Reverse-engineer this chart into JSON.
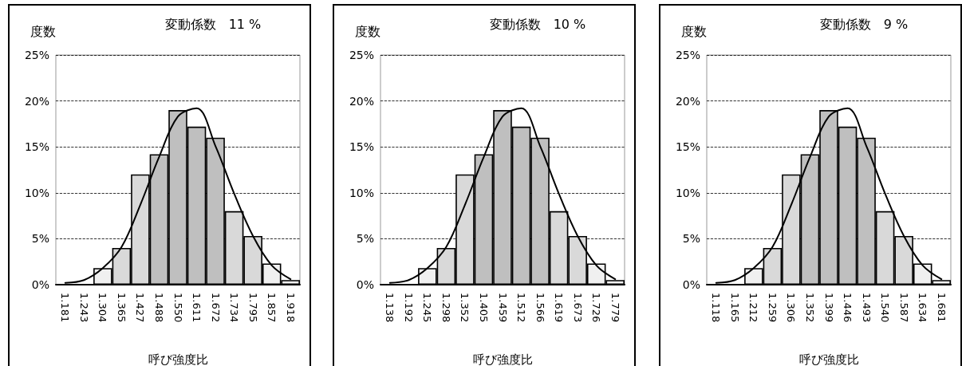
{
  "chart_data": [
    {
      "type": "bar",
      "title": "変動係数　11 %",
      "ylabel": "度数",
      "xlabel": "呼び強度比",
      "categories": [
        "1.181",
        "1.243",
        "1.304",
        "1.365",
        "1.427",
        "1.488",
        "1.550",
        "1.611",
        "1.672",
        "1.734",
        "1.795",
        "1.857",
        "1.918"
      ],
      "series": [
        {
          "values": [
            0,
            0,
            1.8,
            4,
            12,
            14.2,
            19,
            17.2,
            16,
            8,
            5.3,
            2.3,
            0.5
          ],
          "colors": [
            "#f0f0f0",
            "#f0f0f0",
            "#f0f0f0",
            "#d9d9d9",
            "#d9d9d9",
            "#bfbfbf",
            "#bfbfbf",
            "#bfbfbf",
            "#bfbfbf",
            "#d9d9d9",
            "#d9d9d9",
            "#f0f0f0",
            "#f0f0f0"
          ]
        },
        {
          "type": "line",
          "color": "#000000",
          "values": [
            0.2,
            0.5,
            1.8,
            4.1,
            8.7,
            13.9,
            18.3,
            19.2,
            15.1,
            9.9,
            5.3,
            2.1,
            0.6
          ]
        }
      ],
      "ylim": [
        0,
        25
      ],
      "yticks": [
        {
          "value": 0,
          "label": "0%"
        },
        {
          "value": 5,
          "label": "5%"
        },
        {
          "value": 10,
          "label": "10%"
        },
        {
          "value": 15,
          "label": "15%"
        },
        {
          "value": 20,
          "label": "20%"
        },
        {
          "value": 25,
          "label": "25%"
        }
      ],
      "grid": "y",
      "marker": "none",
      "line_style": "solid"
    },
    {
      "type": "bar",
      "title": "変動係数　10 %",
      "ylabel": "度数",
      "xlabel": "呼び強度比",
      "categories": [
        "1.138",
        "1.192",
        "1.245",
        "1.298",
        "1.352",
        "1.405",
        "1.459",
        "1.512",
        "1.566",
        "1.619",
        "1.673",
        "1.726",
        "1.779"
      ],
      "series": [
        {
          "values": [
            0,
            0,
            1.8,
            4,
            12,
            14.2,
            19,
            17.2,
            16,
            8,
            5.3,
            2.3,
            0.5
          ],
          "colors": [
            "#f0f0f0",
            "#f0f0f0",
            "#f0f0f0",
            "#d9d9d9",
            "#d9d9d9",
            "#bfbfbf",
            "#bfbfbf",
            "#bfbfbf",
            "#bfbfbf",
            "#d9d9d9",
            "#d9d9d9",
            "#f0f0f0",
            "#f0f0f0"
          ]
        },
        {
          "type": "line",
          "color": "#000000",
          "values": [
            0.2,
            0.5,
            1.8,
            4.1,
            8.7,
            13.9,
            18.3,
            19.2,
            15.1,
            9.9,
            5.3,
            2.1,
            0.6
          ]
        }
      ],
      "ylim": [
        0,
        25
      ],
      "yticks": [
        {
          "value": 0,
          "label": "0%"
        },
        {
          "value": 5,
          "label": "5%"
        },
        {
          "value": 10,
          "label": "10%"
        },
        {
          "value": 15,
          "label": "15%"
        },
        {
          "value": 20,
          "label": "20%"
        },
        {
          "value": 25,
          "label": "25%"
        }
      ],
      "grid": "y",
      "marker": "none",
      "line_style": "solid"
    },
    {
      "type": "bar",
      "title": "変動係数　9 %",
      "ylabel": "度数",
      "xlabel": "呼び強度比",
      "categories": [
        "1.118",
        "1.165",
        "1.212",
        "1.259",
        "1.306",
        "1.352",
        "1.399",
        "1.446",
        "1.493",
        "1.540",
        "1.587",
        "1.634",
        "1.681"
      ],
      "series": [
        {
          "values": [
            0,
            0,
            1.8,
            4,
            12,
            14.2,
            19,
            17.2,
            16,
            8,
            5.3,
            2.3,
            0.5
          ],
          "colors": [
            "#f0f0f0",
            "#f0f0f0",
            "#f0f0f0",
            "#d9d9d9",
            "#d9d9d9",
            "#bfbfbf",
            "#bfbfbf",
            "#bfbfbf",
            "#bfbfbf",
            "#d9d9d9",
            "#d9d9d9",
            "#f0f0f0",
            "#f0f0f0"
          ]
        },
        {
          "type": "line",
          "color": "#000000",
          "values": [
            0.2,
            0.5,
            1.8,
            4.1,
            8.7,
            13.9,
            18.3,
            19.2,
            15.1,
            9.9,
            5.3,
            2.1,
            0.6
          ]
        }
      ],
      "ylim": [
        0,
        25
      ],
      "yticks": [
        {
          "value": 0,
          "label": "0%"
        },
        {
          "value": 5,
          "label": "5%"
        },
        {
          "value": 10,
          "label": "10%"
        },
        {
          "value": 15,
          "label": "15%"
        },
        {
          "value": 20,
          "label": "20%"
        },
        {
          "value": 25,
          "label": "25%"
        }
      ],
      "grid": "y",
      "marker": "none",
      "line_style": "solid"
    }
  ]
}
